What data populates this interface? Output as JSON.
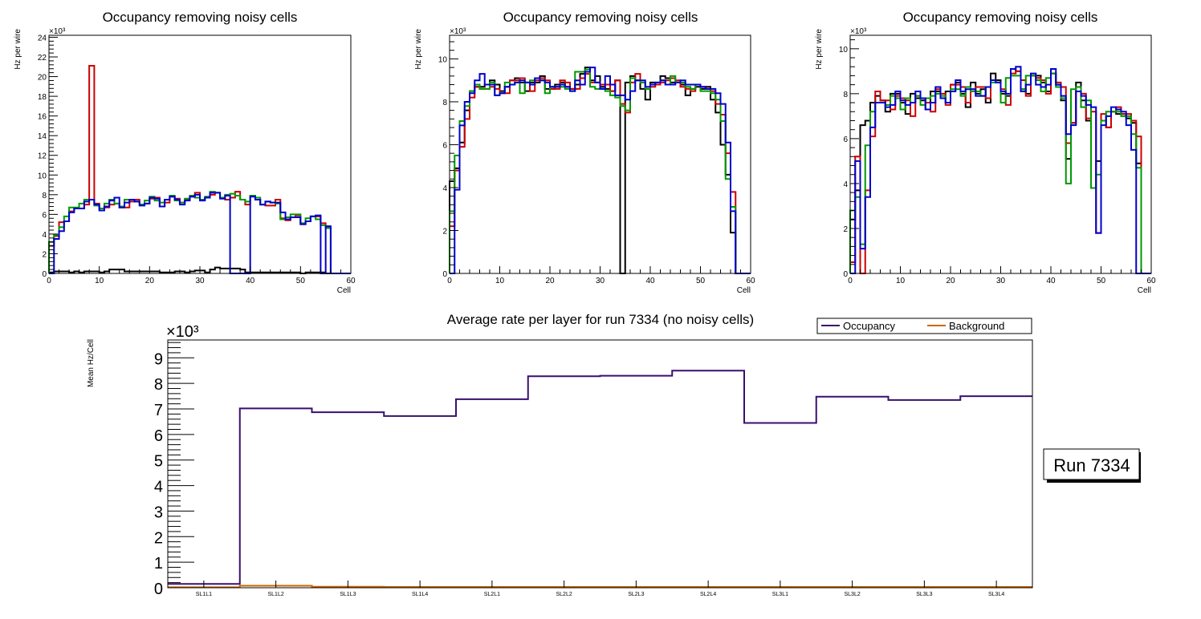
{
  "chart_data": [
    {
      "type": "line",
      "subtype": "step-histogram",
      "title": "Occupancy removing noisy cells",
      "xlabel": "Cell",
      "ylabel": "Hz per wire",
      "y_multiplier": "×10³",
      "xlim": [
        0,
        60
      ],
      "ylim": [
        0,
        24.2
      ],
      "x_ticks": [
        "0",
        "10",
        "20",
        "30",
        "40",
        "50",
        "60"
      ],
      "y_ticks": [
        "0",
        "2",
        "4",
        "6",
        "8",
        "10",
        "12",
        "14",
        "16",
        "18",
        "20",
        "22",
        "24"
      ],
      "y_tick_values": [
        0,
        2,
        4,
        6,
        8,
        10,
        12,
        14,
        16,
        18,
        20,
        22,
        24
      ],
      "bins": 60,
      "series": [
        {
          "name": "layer-black",
          "color": "#000000",
          "values": [
            0.1,
            0.2,
            0.2,
            0.2,
            0.1,
            0.2,
            0.1,
            0.2,
            0.2,
            0.2,
            0.1,
            0.2,
            0.4,
            0.4,
            0.4,
            0.2,
            0.2,
            0.2,
            0.2,
            0.2,
            0.2,
            0.2,
            0.1,
            0.1,
            0.1,
            0.2,
            0.2,
            0.1,
            0.2,
            0.3,
            0.3,
            0.1,
            0.4,
            0.6,
            0.5,
            0.5,
            0.5,
            0.5,
            0.4,
            0.1,
            0.1,
            0.1,
            0.1,
            0.1,
            0.1,
            0.1,
            0.1,
            0.1,
            0.1,
            0.1,
            0.0,
            0.1,
            0.1,
            0.1,
            0.1,
            0.0,
            0.0,
            0.0,
            0.0,
            0.0
          ]
        },
        {
          "name": "layer-red",
          "color": "#cc0000",
          "values": [
            2.8,
            3.8,
            5.2,
            5.3,
            6.3,
            6.6,
            6.6,
            7.0,
            21.1,
            7.1,
            6.6,
            6.7,
            7.0,
            7.1,
            6.7,
            6.7,
            7.3,
            7.5,
            7.0,
            7.1,
            7.6,
            7.7,
            6.8,
            7.2,
            7.8,
            7.6,
            7.2,
            7.5,
            7.8,
            8.2,
            7.5,
            7.7,
            8.0,
            8.2,
            7.7,
            7.5,
            7.7,
            8.3,
            7.5,
            7.0,
            7.9,
            7.5,
            7.0,
            6.9,
            6.9,
            7.5,
            5.6,
            5.4,
            5.7,
            5.9,
            5.0,
            5.3,
            5.8,
            5.8,
            5.1,
            4.7,
            0.0,
            0.0,
            0.0,
            0.0
          ]
        },
        {
          "name": "layer-green",
          "color": "#009900",
          "values": [
            3.2,
            3.9,
            4.7,
            5.8,
            6.7,
            6.7,
            7.1,
            7.5,
            7.5,
            6.9,
            6.6,
            7.1,
            7.5,
            7.1,
            6.8,
            7.5,
            7.5,
            7.3,
            7.0,
            7.4,
            7.8,
            7.4,
            7.2,
            7.5,
            7.9,
            7.4,
            7.2,
            7.6,
            7.9,
            7.7,
            7.5,
            7.8,
            8.3,
            8.2,
            7.7,
            8.0,
            8.1,
            7.9,
            7.5,
            7.3,
            7.9,
            7.7,
            7.0,
            7.3,
            7.2,
            7.1,
            5.5,
            5.7,
            6.0,
            6.0,
            5.1,
            5.6,
            5.8,
            5.5,
            4.9,
            4.6,
            0.0,
            0.0,
            0.0,
            0.0
          ]
        },
        {
          "name": "layer-blue",
          "color": "#0000cc",
          "values": [
            0.0,
            3.5,
            4.3,
            5.3,
            6.2,
            6.6,
            6.6,
            7.3,
            7.5,
            7.0,
            6.4,
            6.8,
            7.4,
            7.7,
            6.7,
            7.2,
            7.5,
            7.3,
            6.9,
            7.1,
            7.7,
            7.6,
            6.8,
            7.5,
            7.8,
            7.5,
            7.0,
            7.4,
            7.8,
            8.0,
            7.4,
            7.7,
            8.2,
            8.2,
            7.6,
            7.9,
            0.0,
            0.0,
            0.0,
            0.0,
            7.8,
            7.5,
            7.0,
            7.3,
            7.2,
            7.2,
            6.2,
            5.5,
            5.7,
            5.7,
            5.0,
            5.3,
            5.8,
            5.9,
            0.0,
            4.8,
            0.0,
            0.0,
            0.0,
            0.0
          ]
        }
      ]
    },
    {
      "type": "line",
      "subtype": "step-histogram",
      "title": "Occupancy removing noisy cells",
      "xlabel": "Cell",
      "ylabel": "Hz per wire",
      "y_multiplier": "×10³",
      "xlim": [
        0,
        60
      ],
      "ylim": [
        0,
        11.1
      ],
      "x_ticks": [
        "0",
        "10",
        "20",
        "30",
        "40",
        "50",
        "60"
      ],
      "y_ticks": [
        "0",
        "2",
        "4",
        "6",
        "8",
        "10"
      ],
      "y_tick_values": [
        0,
        2,
        4,
        6,
        8,
        10
      ],
      "bins": 60,
      "series": [
        {
          "name": "layer-black",
          "color": "#000000",
          "values": [
            4.3,
            4.9,
            6.1,
            7.6,
            8.5,
            8.7,
            8.7,
            8.8,
            9.0,
            8.8,
            8.5,
            8.7,
            9.0,
            9.1,
            8.9,
            8.5,
            8.9,
            8.9,
            9.2,
            8.6,
            8.6,
            8.8,
            8.9,
            8.7,
            8.6,
            8.8,
            9.3,
            9.6,
            9.0,
            9.2,
            8.7,
            8.6,
            8.5,
            9.0,
            0.0,
            8.9,
            9.2,
            9.0,
            8.6,
            8.1,
            8.9,
            8.8,
            9.2,
            9.1,
            8.9,
            8.9,
            8.8,
            8.3,
            8.6,
            8.7,
            8.6,
            8.7,
            8.1,
            7.5,
            6.0,
            4.6,
            1.9,
            0.0,
            0.0,
            0.0
          ]
        },
        {
          "name": "layer-red",
          "color": "#cc0000",
          "values": [
            2.2,
            4.8,
            5.9,
            7.2,
            8.2,
            8.7,
            8.6,
            8.6,
            8.7,
            8.6,
            8.4,
            8.4,
            9.0,
            9.0,
            9.1,
            8.9,
            8.5,
            9.0,
            9.1,
            9.0,
            8.6,
            8.6,
            9.0,
            8.9,
            8.6,
            8.6,
            9.1,
            9.3,
            8.9,
            8.9,
            8.8,
            8.8,
            8.5,
            9.0,
            7.9,
            7.5,
            8.9,
            9.3,
            8.9,
            8.6,
            8.7,
            8.8,
            8.9,
            9.0,
            9.1,
            9.0,
            8.7,
            8.6,
            8.5,
            8.8,
            8.7,
            8.6,
            8.5,
            7.9,
            7.4,
            5.6,
            3.8,
            0.0,
            0.0,
            0.0
          ]
        },
        {
          "name": "layer-green",
          "color": "#009900",
          "values": [
            2.9,
            5.5,
            7.1,
            7.8,
            8.5,
            8.8,
            8.6,
            8.6,
            8.9,
            8.3,
            8.4,
            8.9,
            8.8,
            8.9,
            8.4,
            8.9,
            9.0,
            9.1,
            9.0,
            8.4,
            8.7,
            8.7,
            8.7,
            8.6,
            8.5,
            9.4,
            9.4,
            9.5,
            8.7,
            8.6,
            8.6,
            8.5,
            8.3,
            8.2,
            7.8,
            7.6,
            9.1,
            9.0,
            8.9,
            8.6,
            8.8,
            8.9,
            9.0,
            8.8,
            9.2,
            8.9,
            8.9,
            8.7,
            8.6,
            8.8,
            8.5,
            8.5,
            8.4,
            8.1,
            7.1,
            4.4,
            3.1,
            0.0,
            0.0,
            0.0
          ]
        },
        {
          "name": "layer-blue",
          "color": "#0000cc",
          "values": [
            0.0,
            3.9,
            6.9,
            8.0,
            8.4,
            9.0,
            9.3,
            8.8,
            8.8,
            8.3,
            8.4,
            8.7,
            8.8,
            8.9,
            9.0,
            8.9,
            8.8,
            9.1,
            9.0,
            8.9,
            8.7,
            8.7,
            8.8,
            8.7,
            8.5,
            9.0,
            8.8,
            9.4,
            9.6,
            8.9,
            8.6,
            9.2,
            8.8,
            8.3,
            8.3,
            8.1,
            8.5,
            9.0,
            9.0,
            8.7,
            8.8,
            8.9,
            9.0,
            8.8,
            8.8,
            8.9,
            9.0,
            8.8,
            8.8,
            8.8,
            8.7,
            8.6,
            8.6,
            8.4,
            7.9,
            6.1,
            2.9,
            0.0,
            0.0,
            0.0
          ]
        }
      ]
    },
    {
      "type": "line",
      "subtype": "step-histogram",
      "title": "Occupancy removing noisy cells",
      "xlabel": "Cell",
      "ylabel": "Hz per wire",
      "y_multiplier": "×10³",
      "xlim": [
        0,
        60
      ],
      "ylim": [
        0,
        10.6
      ],
      "x_ticks": [
        "0",
        "10",
        "20",
        "30",
        "40",
        "50",
        "60"
      ],
      "y_ticks": [
        "0",
        "2",
        "4",
        "6",
        "8",
        "10"
      ],
      "y_tick_values": [
        0,
        2,
        4,
        6,
        8,
        10
      ],
      "bins": 60,
      "series": [
        {
          "name": "layer-black",
          "color": "#000000",
          "values": [
            2.4,
            3.7,
            6.6,
            6.8,
            7.6,
            7.9,
            7.7,
            7.2,
            8.0,
            8.0,
            7.6,
            7.1,
            8.0,
            7.8,
            7.7,
            7.3,
            8.1,
            8.1,
            7.8,
            8.1,
            8.4,
            8.5,
            8.0,
            7.4,
            8.5,
            8.0,
            8.2,
            7.6,
            8.9,
            8.6,
            8.0,
            7.9,
            9.1,
            9.0,
            8.2,
            8.0,
            8.8,
            8.8,
            8.5,
            8.1,
            8.9,
            8.4,
            7.7,
            5.1,
            6.7,
            8.5,
            7.7,
            6.8,
            3.8,
            5.0,
            6.8,
            6.5,
            7.2,
            7.1,
            7.1,
            6.9,
            6.7,
            4.9,
            0.0,
            0.0
          ]
        },
        {
          "name": "layer-red",
          "color": "#cc0000",
          "values": [
            0.5,
            5.2,
            0.0,
            3.7,
            6.1,
            8.1,
            7.7,
            7.7,
            7.3,
            7.9,
            7.8,
            7.7,
            7.0,
            7.9,
            7.8,
            7.6,
            7.2,
            8.2,
            8.0,
            7.5,
            8.4,
            8.4,
            8.3,
            7.6,
            8.2,
            8.3,
            8.3,
            7.8,
            8.6,
            8.5,
            8.2,
            7.5,
            8.9,
            9.0,
            8.6,
            7.9,
            8.8,
            8.7,
            8.6,
            8.0,
            8.9,
            8.5,
            8.3,
            5.8,
            6.7,
            8.3,
            8.0,
            6.9,
            7.2,
            1.8,
            7.1,
            6.5,
            7.2,
            7.4,
            7.1,
            7.1,
            6.8,
            6.1,
            0.0,
            0.0
          ]
        },
        {
          "name": "layer-green",
          "color": "#009900",
          "values": [
            2.8,
            3.4,
            1.3,
            5.7,
            7.2,
            7.6,
            7.6,
            7.5,
            7.9,
            7.8,
            7.3,
            7.8,
            7.6,
            7.9,
            7.5,
            7.8,
            7.9,
            8.0,
            7.9,
            7.6,
            8.2,
            8.2,
            7.9,
            8.3,
            8.1,
            8.1,
            7.9,
            8.3,
            8.5,
            8.5,
            7.6,
            8.7,
            8.8,
            8.8,
            8.2,
            8.8,
            8.8,
            8.6,
            8.1,
            8.7,
            8.9,
            8.3,
            7.8,
            4.0,
            8.2,
            8.3,
            7.4,
            7.7,
            3.8,
            4.4,
            6.8,
            7.2,
            7.2,
            7.2,
            7.0,
            7.0,
            6.2,
            4.7,
            0.0,
            0.0
          ]
        },
        {
          "name": "layer-blue",
          "color": "#0000cc",
          "values": [
            0.0,
            5.0,
            1.1,
            3.4,
            6.5,
            7.6,
            7.6,
            7.4,
            7.5,
            8.1,
            7.7,
            7.5,
            7.6,
            8.1,
            7.8,
            7.3,
            7.6,
            8.3,
            7.8,
            7.6,
            8.1,
            8.6,
            8.1,
            8.2,
            8.2,
            7.9,
            7.9,
            8.3,
            8.6,
            8.5,
            8.1,
            8.0,
            9.1,
            9.2,
            8.1,
            8.4,
            8.9,
            8.4,
            8.3,
            8.4,
            9.1,
            8.4,
            7.9,
            6.2,
            6.6,
            8.1,
            7.9,
            7.5,
            7.4,
            1.8,
            6.6,
            7.0,
            7.4,
            7.3,
            7.2,
            6.6,
            5.5,
            0.0,
            0.0,
            0.0
          ]
        }
      ]
    },
    {
      "type": "line",
      "subtype": "step-histogram",
      "title": "Average rate per layer for run 7334 (no noisy cells)",
      "xlabel": "",
      "ylabel": "Mean Hz/Cell",
      "y_multiplier": "×10³",
      "categories": [
        "SL1L1",
        "SL1L2",
        "SL1L3",
        "SL1L4",
        "SL2L1",
        "SL2L2",
        "SL2L3",
        "SL2L4",
        "SL3L1",
        "SL3L2",
        "SL3L3",
        "SL3L4"
      ],
      "ylim": [
        0,
        9.7
      ],
      "y_ticks": [
        "0",
        "1",
        "2",
        "3",
        "4",
        "5",
        "6",
        "7",
        "8",
        "9"
      ],
      "y_tick_values": [
        0,
        1,
        2,
        3,
        4,
        5,
        6,
        7,
        8,
        9
      ],
      "legend_position": "top-right",
      "series": [
        {
          "name": "Occupancy",
          "color": "#3a0f6e",
          "values": [
            0.15,
            7.02,
            6.87,
            6.72,
            7.38,
            8.28,
            8.3,
            8.5,
            6.45,
            7.48,
            7.35,
            7.5
          ]
        },
        {
          "name": "Background",
          "color": "#cc6600",
          "values": [
            0.02,
            0.08,
            0.04,
            0.03,
            0.03,
            0.03,
            0.03,
            0.03,
            0.03,
            0.03,
            0.03,
            0.03
          ]
        }
      ],
      "annotation": "Run 7334"
    }
  ],
  "legend": {
    "occupancy_label": "Occupancy",
    "background_label": "Background"
  },
  "run_box": {
    "label": "Run 7334"
  }
}
